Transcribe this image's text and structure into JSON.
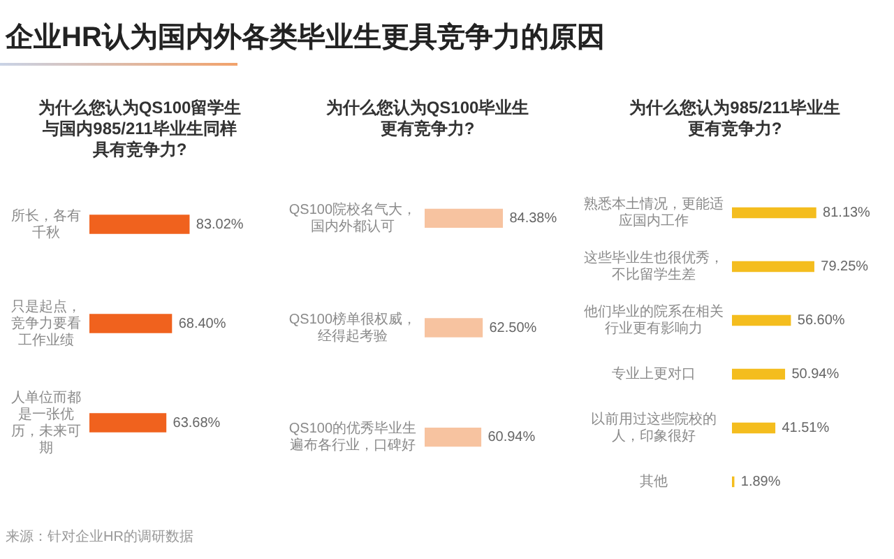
{
  "chart_data": [
    {
      "type": "bar",
      "orientation": "horizontal",
      "title": "企业HR认为国内外各类毕业生更具竞争力的原因",
      "subtitle": "为什么您认为QS100留学生与国内985/211毕业生同样具有竞争力?",
      "categories": [
        "所长，各有千秋",
        "只是起点，竞争力要看工作业绩",
        "人单位而都是一张优历，未来可期"
      ],
      "values": [
        83.02,
        68.4,
        63.68
      ],
      "value_labels": [
        "83.02%",
        "68.40%",
        "63.68%"
      ],
      "color": "#f0621e",
      "tick_labels": "y",
      "annotations": [
        "来源：针对企业HR的调研数据"
      ]
    },
    {
      "type": "bar",
      "orientation": "horizontal",
      "subtitle": "为什么您认为QS100毕业生更有竞争力?",
      "categories": [
        "QS100院校名气大，国内外都认可",
        "QS100榜单很权威，经得起考验",
        "QS100的优秀毕业生遍布各行业，口碑好"
      ],
      "values": [
        84.38,
        62.5,
        60.94
      ],
      "value_labels": [
        "84.38%",
        "62.50%",
        "60.94%"
      ],
      "color": "#f7c3a0",
      "tick_labels": "y"
    },
    {
      "type": "bar",
      "orientation": "horizontal",
      "subtitle": "为什么您认为985/211毕业生更有竞争力?",
      "categories": [
        "熟悉本土情况，更能适应国内工作",
        "这些毕业生也很优秀，不比留学生差",
        "他们毕业的院系在相关行业更有影响力",
        "专业上更对口",
        "以前用过这些院校的人，印象很好",
        "其他"
      ],
      "values": [
        81.13,
        79.25,
        56.6,
        50.94,
        41.51,
        1.89
      ],
      "value_labels": [
        "81.13%",
        "79.25%",
        "56.60%",
        "50.94%",
        "41.51%",
        "1.89%"
      ],
      "color": "#f4bd1e",
      "tick_labels": "y"
    }
  ]
}
